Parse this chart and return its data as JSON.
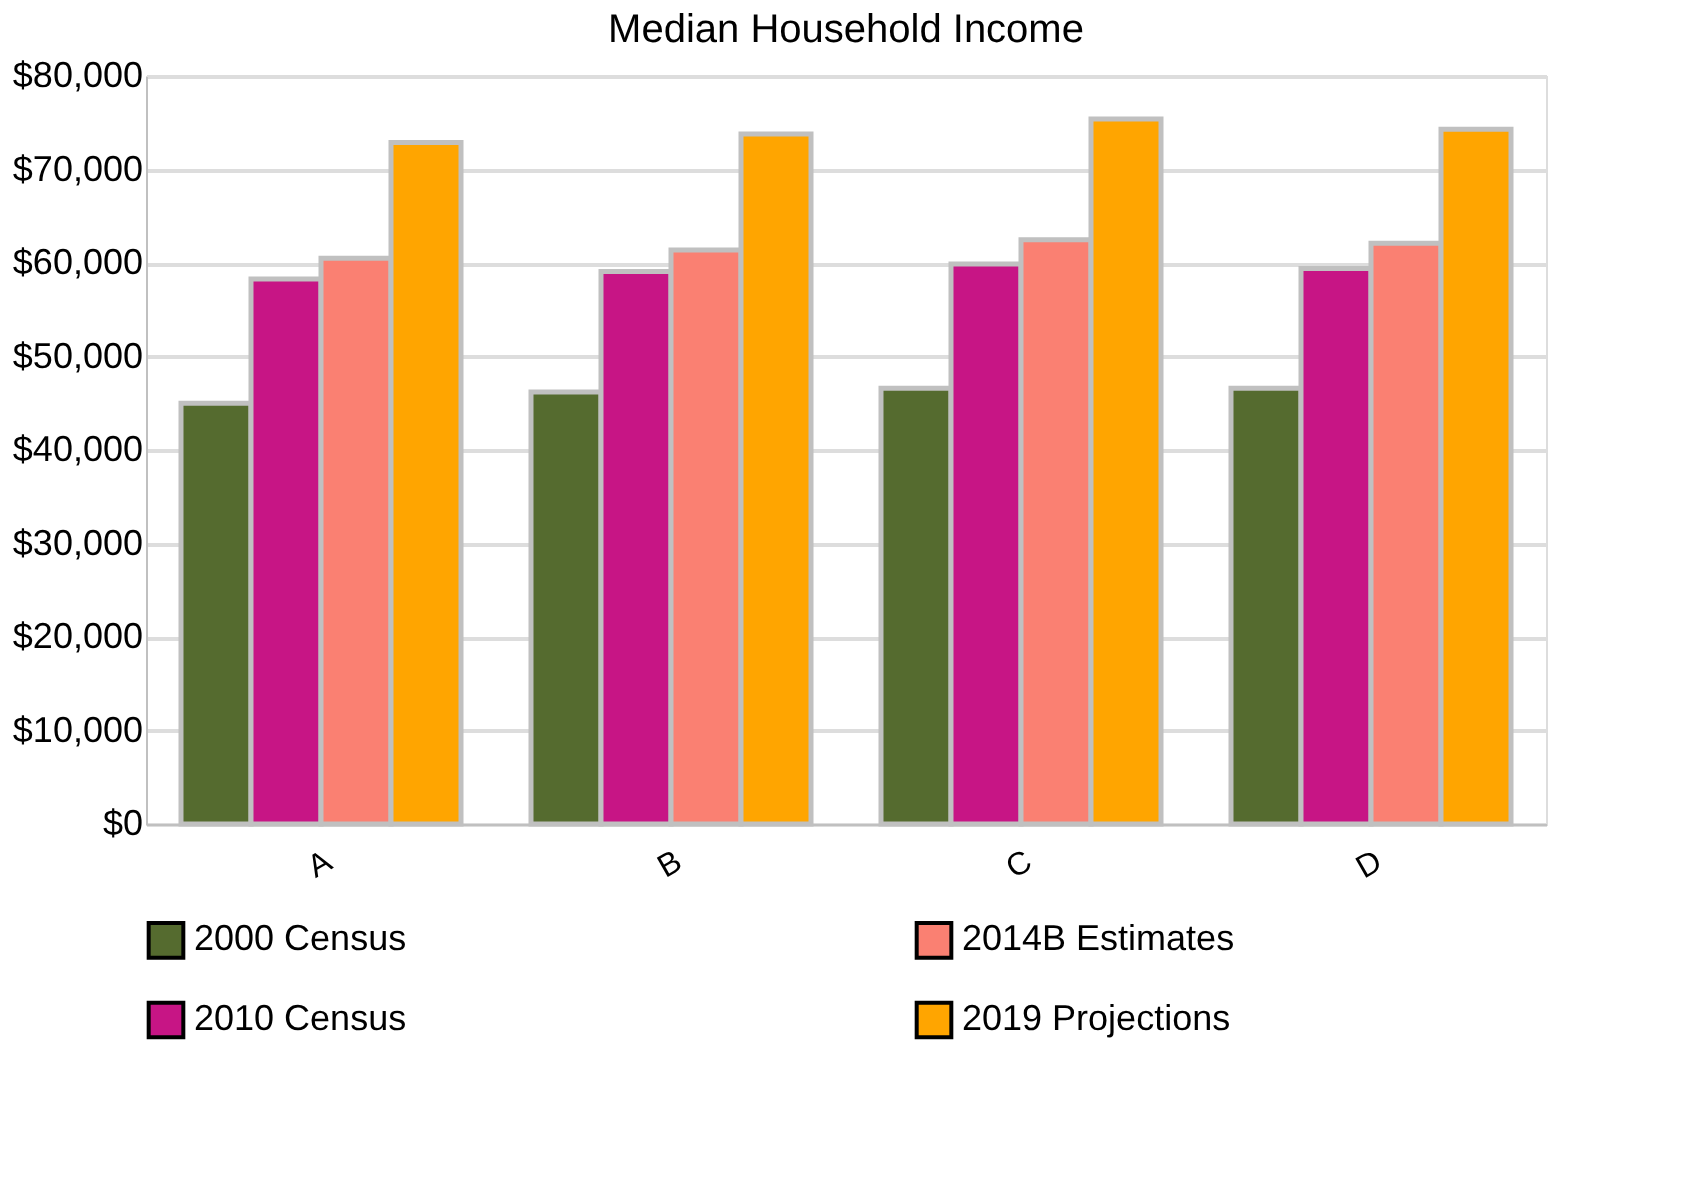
{
  "chart_data": {
    "type": "bar",
    "title": "Median Household Income",
    "categories": [
      "A",
      "B",
      "C",
      "D"
    ],
    "series": [
      {
        "name": "2000 Census",
        "color": "#556b2f",
        "values": [
          45000,
          46200,
          46600,
          46600
        ]
      },
      {
        "name": "2010 Census",
        "color": "#c71585",
        "values": [
          58300,
          59100,
          59900,
          59400
        ]
      },
      {
        "name": "2014B Estimates",
        "color": "#fa8072",
        "values": [
          60500,
          61400,
          62500,
          62100
        ]
      },
      {
        "name": "2019 Projections",
        "color": "#ffa500",
        "values": [
          72900,
          73800,
          75400,
          74300
        ]
      }
    ],
    "ylim": [
      0,
      80000
    ],
    "yticks": [
      {
        "value": 0,
        "label": "$0"
      },
      {
        "value": 10000,
        "label": "$10,000"
      },
      {
        "value": 20000,
        "label": "$20,000"
      },
      {
        "value": 30000,
        "label": "$30,000"
      },
      {
        "value": 40000,
        "label": "$40,000"
      },
      {
        "value": 50000,
        "label": "$50,000"
      },
      {
        "value": 60000,
        "label": "$60,000"
      },
      {
        "value": 70000,
        "label": "$70,000"
      },
      {
        "value": 80000,
        "label": "$80,000"
      }
    ],
    "grid": "y",
    "legend": "bottom"
  }
}
